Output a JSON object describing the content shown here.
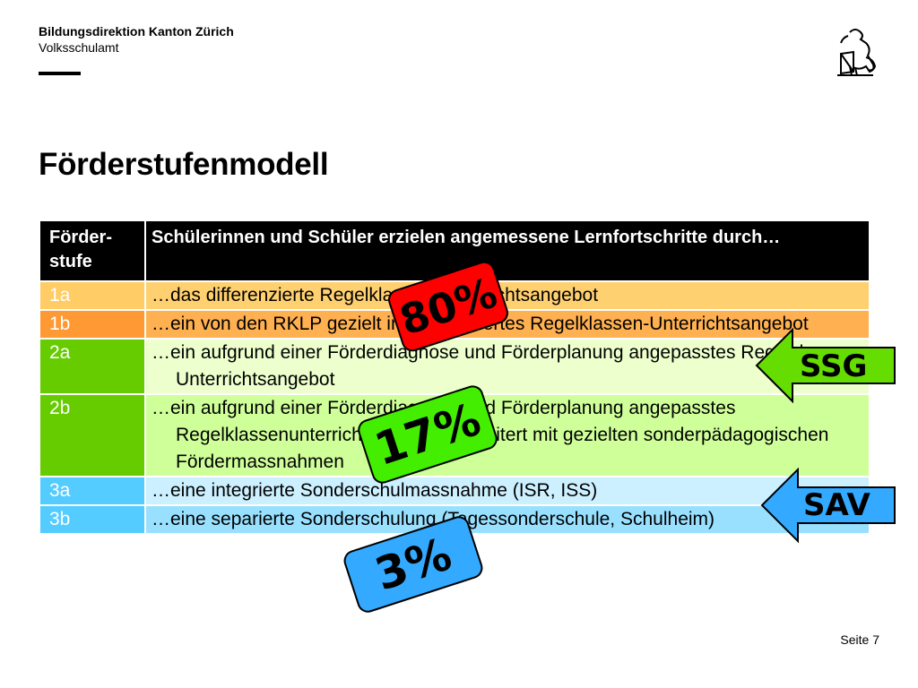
{
  "header": {
    "org_line1": "Bildungsdirektion Kanton Zürich",
    "org_line2": "Volksschulamt",
    "crest_icon": "zurich-lion-crest-icon"
  },
  "title": "Förderstufenmodell",
  "table": {
    "header": {
      "col1": "Förder-\nstufe",
      "col2": "Schülerinnen und Schüler erzielen angemessene Lernfortschritte durch…"
    },
    "rows": [
      {
        "level": "1a",
        "text": "…das differenzierte Regelklassen-Unterrichtsangebot"
      },
      {
        "level": "1b",
        "text": "…ein von den RKLP gezielt individualisiertes Regelklassen-Unterrichtsangebot"
      },
      {
        "level": "2a",
        "text": "…ein aufgrund einer Förderdiagnose und Förderplanung angepasstes Regelklassen-Unterrichtsangebot"
      },
      {
        "level": "2b",
        "text": "…ein aufgrund einer Förderdiagnose und Förderplanung angepasstes Regelklassenunterrichtsangebot, erweitert mit gezielten sonderpädagogischen Fördermassnahmen"
      },
      {
        "level": "3a",
        "text": "…eine integrierte Sonderschulmassnahme (ISR, ISS)"
      },
      {
        "level": "3b",
        "text": "…eine separierte Sonderschulung (Tagessonderschule, Schulheim)"
      }
    ]
  },
  "badges": {
    "pct_80": "80%",
    "pct_17": "17%",
    "pct_3": "3%"
  },
  "arrows": {
    "ssg": "SSG",
    "sav": "SAV"
  },
  "colors": {
    "badge_80": "#ff0000",
    "badge_17": "#44ee00",
    "badge_3": "#33aaff",
    "arrow_ssg": "#66dd00",
    "arrow_sav": "#33aaff"
  },
  "footer": {
    "page": "Seite 7"
  }
}
